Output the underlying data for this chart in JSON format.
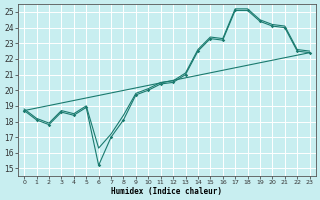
{
  "xlabel": "Humidex (Indice chaleur)",
  "bg_color": "#c8eef0",
  "grid_color": "#ffffff",
  "line_color": "#1a7a6e",
  "xlim": [
    -0.5,
    23.5
  ],
  "ylim": [
    14.5,
    25.5
  ],
  "xticks": [
    0,
    1,
    2,
    3,
    4,
    5,
    6,
    7,
    8,
    9,
    10,
    11,
    12,
    13,
    14,
    15,
    16,
    17,
    18,
    19,
    20,
    21,
    22,
    23
  ],
  "yticks": [
    15,
    16,
    17,
    18,
    19,
    20,
    21,
    22,
    23,
    24,
    25
  ],
  "series_zigzag_x": [
    0,
    1,
    2,
    3,
    4,
    5,
    6,
    7,
    8,
    9,
    10,
    11,
    12,
    13,
    14,
    15,
    16,
    17,
    18,
    19,
    20,
    21,
    22,
    23
  ],
  "series_zigzag_y": [
    18.7,
    18.1,
    17.8,
    18.6,
    18.4,
    18.9,
    15.2,
    17.0,
    18.1,
    19.7,
    20.0,
    20.4,
    20.5,
    21.0,
    22.5,
    23.3,
    23.2,
    25.1,
    25.1,
    24.4,
    24.1,
    24.0,
    22.5,
    22.4
  ],
  "series_smooth_x": [
    0,
    1,
    2,
    3,
    4,
    5,
    6,
    7,
    8,
    9,
    10,
    11,
    12,
    13,
    14,
    15,
    16,
    17,
    18,
    19,
    20,
    21,
    22,
    23
  ],
  "series_smooth_y": [
    18.8,
    18.2,
    17.9,
    18.7,
    18.5,
    19.0,
    16.3,
    17.2,
    18.4,
    19.8,
    20.1,
    20.5,
    20.6,
    21.1,
    22.6,
    23.4,
    23.3,
    25.2,
    25.2,
    24.5,
    24.2,
    24.1,
    22.6,
    22.5
  ],
  "series_trend_x": [
    0,
    23
  ],
  "series_trend_y": [
    18.7,
    22.4
  ],
  "marker_x": [
    0,
    1,
    2,
    3,
    4,
    5,
    6,
    7,
    8,
    9,
    10,
    11,
    12,
    13,
    14,
    15,
    16,
    17,
    18,
    19,
    20,
    21,
    22,
    23
  ],
  "marker_y": [
    18.7,
    18.1,
    17.8,
    18.6,
    18.4,
    18.9,
    15.2,
    17.0,
    18.1,
    19.7,
    20.0,
    20.4,
    20.5,
    21.0,
    22.5,
    23.3,
    23.2,
    25.1,
    25.1,
    24.4,
    24.1,
    24.0,
    22.5,
    22.4
  ]
}
